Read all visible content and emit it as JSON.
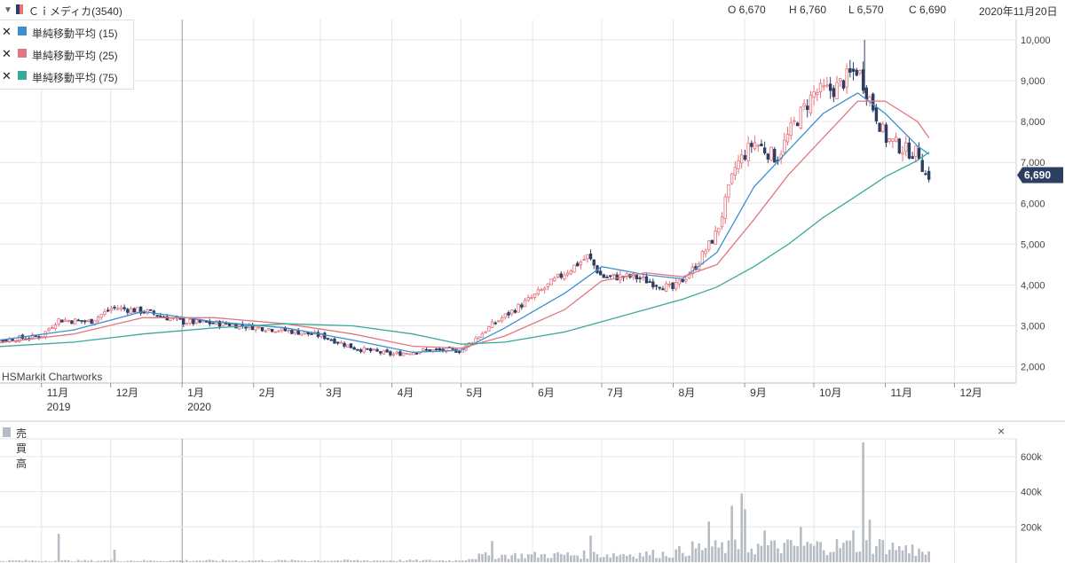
{
  "header": {
    "symbol": "Ｃｉメディカ(3540)",
    "open": "O 6,670",
    "high": "H 6,760",
    "low": "L 6,570",
    "close": "C 6,690",
    "date": "2020年11月20日"
  },
  "legend": [
    {
      "label": "単純移動平均 (15)",
      "color": "#3d8fd1"
    },
    {
      "label": "単純移動平均 (25)",
      "color": "#e07683"
    },
    {
      "label": "単純移動平均 (75)",
      "color": "#3aa89b"
    }
  ],
  "watermark": "HSMarkit Chartworks",
  "volume_title": "売買高",
  "volume_close": "×",
  "last_price_badge": "6,690",
  "colors": {
    "up": "#e8717a",
    "down": "#2d3e63",
    "grid": "#e6e6e6",
    "volume": "#b6bcc3",
    "badge": "#2d3e63"
  },
  "chart_data": [
    {
      "type": "line",
      "title": "Ｃｉメディカ(3540)",
      "x_tick_labels": [
        "11月",
        "12月",
        "1月",
        "2月",
        "3月",
        "4月",
        "5月",
        "6月",
        "7月",
        "8月",
        "9月",
        "10月",
        "11月",
        "12月"
      ],
      "x_year_labels": [
        "2019",
        "2020"
      ],
      "y_tick_labels": [
        "2,000",
        "3,000",
        "4,000",
        "5,000",
        "6,000",
        "7,000",
        "8,000",
        "9,000",
        "10,000"
      ],
      "ylim": [
        1600,
        10500
      ],
      "grid": true,
      "legend_position": "top-left",
      "last_price": 6690,
      "close_path": [
        [
          "2019-10-01",
          2600
        ],
        [
          "2019-10-15",
          2650
        ],
        [
          "2019-11-01",
          2750
        ],
        [
          "2019-11-08",
          3150
        ],
        [
          "2019-11-22",
          3100
        ],
        [
          "2019-12-02",
          3450
        ],
        [
          "2019-12-16",
          3350
        ],
        [
          "2020-01-01",
          3100
        ],
        [
          "2020-01-20",
          3050
        ],
        [
          "2020-02-05",
          2950
        ],
        [
          "2020-02-20",
          2850
        ],
        [
          "2020-03-02",
          2750
        ],
        [
          "2020-03-16",
          2450
        ],
        [
          "2020-04-01",
          2300
        ],
        [
          "2020-04-15",
          2400
        ],
        [
          "2020-05-01",
          2400
        ],
        [
          "2020-05-15",
          3050
        ],
        [
          "2020-06-01",
          3700
        ],
        [
          "2020-06-15",
          4300
        ],
        [
          "2020-06-25",
          4700
        ],
        [
          "2020-07-01",
          4200
        ],
        [
          "2020-07-15",
          4200
        ],
        [
          "2020-08-01",
          3900
        ],
        [
          "2020-08-10",
          4400
        ],
        [
          "2020-08-20",
          5300
        ],
        [
          "2020-08-28",
          6900
        ],
        [
          "2020-09-05",
          7500
        ],
        [
          "2020-09-15",
          7100
        ],
        [
          "2020-09-22",
          7900
        ],
        [
          "2020-10-01",
          8700
        ],
        [
          "2020-10-10",
          8800
        ],
        [
          "2020-10-20",
          9300
        ],
        [
          "2020-10-25",
          8600
        ],
        [
          "2020-11-01",
          7600
        ],
        [
          "2020-11-10",
          7300
        ],
        [
          "2020-11-16",
          7200
        ],
        [
          "2020-11-18",
          6700
        ],
        [
          "2020-11-20",
          6690
        ]
      ],
      "series": [
        {
          "name": "単純移動平均 (15)",
          "points": [
            [
              "2019-10-01",
              2550
            ],
            [
              "2019-11-15",
              2900
            ],
            [
              "2019-12-15",
              3350
            ],
            [
              "2020-01-15",
              3100
            ],
            [
              "2020-02-15",
              2950
            ],
            [
              "2020-03-15",
              2650
            ],
            [
              "2020-04-10",
              2350
            ],
            [
              "2020-05-01",
              2400
            ],
            [
              "2020-05-20",
              2950
            ],
            [
              "2020-06-15",
              3800
            ],
            [
              "2020-07-01",
              4450
            ],
            [
              "2020-07-20",
              4250
            ],
            [
              "2020-08-05",
              4150
            ],
            [
              "2020-08-20",
              4800
            ],
            [
              "2020-09-05",
              6400
            ],
            [
              "2020-09-20",
              7300
            ],
            [
              "2020-10-05",
              8200
            ],
            [
              "2020-10-20",
              8700
            ],
            [
              "2020-11-01",
              8200
            ],
            [
              "2020-11-15",
              7400
            ],
            [
              "2020-11-20",
              7200
            ]
          ]
        },
        {
          "name": "単純移動平均 (25)",
          "points": [
            [
              "2019-10-01",
              2500
            ],
            [
              "2019-11-15",
              2800
            ],
            [
              "2019-12-15",
              3200
            ],
            [
              "2020-01-15",
              3200
            ],
            [
              "2020-02-15",
              3050
            ],
            [
              "2020-03-15",
              2800
            ],
            [
              "2020-04-10",
              2500
            ],
            [
              "2020-05-01",
              2450
            ],
            [
              "2020-05-20",
              2750
            ],
            [
              "2020-06-15",
              3400
            ],
            [
              "2020-07-01",
              4100
            ],
            [
              "2020-07-20",
              4300
            ],
            [
              "2020-08-05",
              4200
            ],
            [
              "2020-08-20",
              4500
            ],
            [
              "2020-09-05",
              5600
            ],
            [
              "2020-09-20",
              6700
            ],
            [
              "2020-10-05",
              7600
            ],
            [
              "2020-10-20",
              8500
            ],
            [
              "2020-11-01",
              8500
            ],
            [
              "2020-11-15",
              8000
            ],
            [
              "2020-11-20",
              7600
            ]
          ]
        },
        {
          "name": "単純移動平均 (75)",
          "points": [
            [
              "2019-10-01",
              2450
            ],
            [
              "2019-11-15",
              2600
            ],
            [
              "2019-12-15",
              2800
            ],
            [
              "2020-01-15",
              2950
            ],
            [
              "2020-02-15",
              3050
            ],
            [
              "2020-03-15",
              3000
            ],
            [
              "2020-04-10",
              2800
            ],
            [
              "2020-05-01",
              2550
            ],
            [
              "2020-05-20",
              2600
            ],
            [
              "2020-06-15",
              2850
            ],
            [
              "2020-07-01",
              3100
            ],
            [
              "2020-07-20",
              3400
            ],
            [
              "2020-08-05",
              3650
            ],
            [
              "2020-08-20",
              3950
            ],
            [
              "2020-09-05",
              4450
            ],
            [
              "2020-09-20",
              5000
            ],
            [
              "2020-10-05",
              5650
            ],
            [
              "2020-10-20",
              6200
            ],
            [
              "2020-11-01",
              6650
            ],
            [
              "2020-11-15",
              7050
            ],
            [
              "2020-11-20",
              7250
            ]
          ]
        }
      ]
    },
    {
      "type": "bar",
      "title": "売買高",
      "y_tick_labels": [
        "200k",
        "400k",
        "600k"
      ],
      "ylim": [
        0,
        700000
      ],
      "grid": true,
      "spikes": [
        [
          "2019-11-08",
          160000
        ],
        [
          "2019-12-03",
          70000
        ],
        [
          "2020-05-15",
          120000
        ],
        [
          "2020-06-26",
          150000
        ],
        [
          "2020-08-17",
          230000
        ],
        [
          "2020-08-27",
          320000
        ],
        [
          "2020-08-31",
          390000
        ],
        [
          "2020-09-02",
          300000
        ],
        [
          "2020-09-10",
          180000
        ],
        [
          "2020-09-25",
          200000
        ],
        [
          "2020-10-19",
          180000
        ],
        [
          "2020-10-23",
          680000
        ],
        [
          "2020-10-26",
          240000
        ],
        [
          "2020-11-13",
          100000
        ]
      ],
      "baseline_values": [
        [
          "2019-10-01",
          10000
        ],
        [
          "2020-04-30",
          12000
        ],
        [
          "2020-05-10",
          45000
        ],
        [
          "2020-07-31",
          60000
        ],
        [
          "2020-08-10",
          100000
        ],
        [
          "2020-10-31",
          120000
        ],
        [
          "2020-11-20",
          60000
        ]
      ]
    }
  ]
}
